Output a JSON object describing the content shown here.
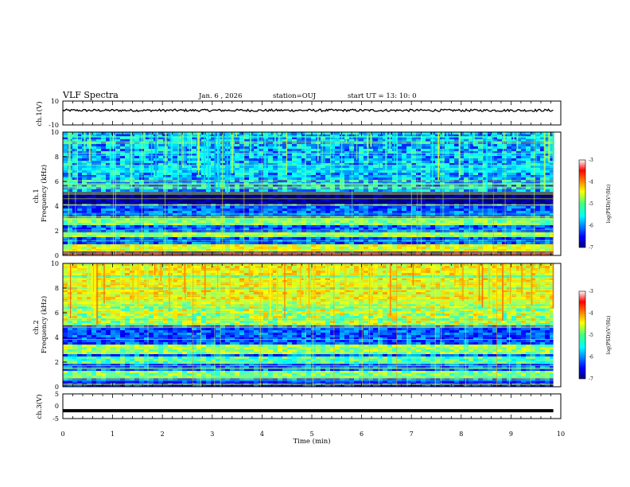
{
  "header": {
    "title": "VLF Spectra",
    "date": "Jan. 6 , 2026",
    "station": "station=OUJ",
    "start": "start UT =  13: 10: 0"
  },
  "chart_data": [
    {
      "type": "line",
      "name": "ch1-waveform",
      "ylabel": "ch.1(V)",
      "ylim": [
        -10,
        10
      ],
      "yticks": [
        "10",
        "-10"
      ],
      "xlim": [
        0,
        10
      ],
      "x_end": 9.85,
      "baseline": 2.2,
      "noise_amplitude": 1.0
    },
    {
      "type": "heatmap",
      "name": "ch1-spectrogram",
      "ylabel": "ch.1\nFrequency (kHz)",
      "ylim": [
        0,
        10
      ],
      "yticks": [
        "0",
        "2",
        "4",
        "6",
        "8",
        "10"
      ],
      "xlim": [
        0,
        10
      ],
      "x_end": 9.85,
      "colorbar": {
        "label": "log(PSD)(V²/Hz)",
        "range": [
          -7,
          -3
        ],
        "ticks": [
          "-3",
          "-4",
          "-5",
          "-6",
          "-7"
        ]
      },
      "bands_khz": [
        {
          "from": 0.0,
          "to": 0.4,
          "level": -3.3
        },
        {
          "from": 0.4,
          "to": 1.0,
          "level": -4.6
        },
        {
          "from": 1.5,
          "to": 2.0,
          "level": -4.9
        },
        {
          "from": 2.6,
          "to": 3.2,
          "level": -5.0
        },
        {
          "from": 4.2,
          "to": 5.2,
          "level": -7.0
        },
        {
          "from": 6.8,
          "to": 7.4,
          "level": -5.6
        }
      ],
      "upper_noise_level": -5.6
    },
    {
      "type": "heatmap",
      "name": "ch2-spectrogram",
      "ylabel": "ch.2\nFrequency (kHz)",
      "ylim": [
        0,
        10
      ],
      "yticks": [
        "0",
        "2",
        "4",
        "6",
        "8",
        "10"
      ],
      "xlim": [
        0,
        10
      ],
      "x_end": 9.85,
      "colorbar": {
        "label": "log(PSD)(V²/Hz)",
        "range": [
          -7,
          -3
        ],
        "ticks": [
          "-3",
          "-4",
          "-5",
          "-6",
          "-7"
        ]
      },
      "bands_khz": [
        {
          "from": 0.0,
          "to": 0.6,
          "level": -6.4
        },
        {
          "from": 0.8,
          "to": 1.4,
          "level": -5.0
        },
        {
          "from": 2.0,
          "to": 2.6,
          "level": -5.2
        },
        {
          "from": 2.8,
          "to": 3.6,
          "level": -4.9
        },
        {
          "from": 6.6,
          "to": 7.0,
          "level": -4.7
        },
        {
          "from": 7.0,
          "to": 10.0,
          "level": -4.5
        }
      ],
      "upper_noise_level": -4.6
    },
    {
      "type": "line",
      "name": "ch3-waveform",
      "ylabel": "ch.3(V)",
      "ylim": [
        -5,
        5
      ],
      "yticks": [
        "5",
        "0",
        "-5"
      ],
      "xlim": [
        0,
        10
      ],
      "x_end": 9.85,
      "baseline": -1.8,
      "xlabel": "Time (min)",
      "xticks": [
        "0",
        "1",
        "2",
        "3",
        "4",
        "5",
        "6",
        "7",
        "8",
        "9",
        "10"
      ]
    }
  ]
}
